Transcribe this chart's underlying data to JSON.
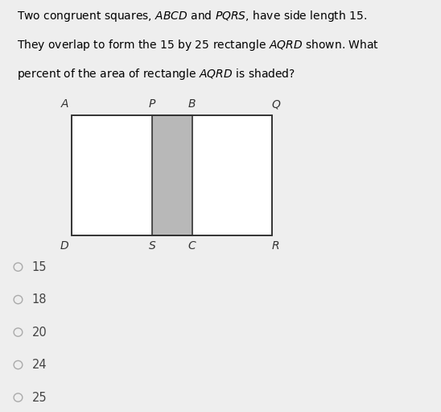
{
  "bg_color": "#eeeeee",
  "rect_color": "white",
  "shade_color": "#b8b8b8",
  "border_color": "#333333",
  "title_lines": [
    "Two congruent squares, $ABCD$ and $PQRS$, have side length 15.",
    "They overlap to form the 15 by 25 rectangle $AQRD$ shown. What",
    "percent of the area of rectangle $AQRD$ is shaded?"
  ],
  "choices": [
    "15",
    "18",
    "20",
    "24",
    "25"
  ],
  "label_fontsize": 10,
  "title_fontsize": 10,
  "choice_fontsize": 10.5,
  "radio_color": "#aaaaaa",
  "text_color": "#444444"
}
